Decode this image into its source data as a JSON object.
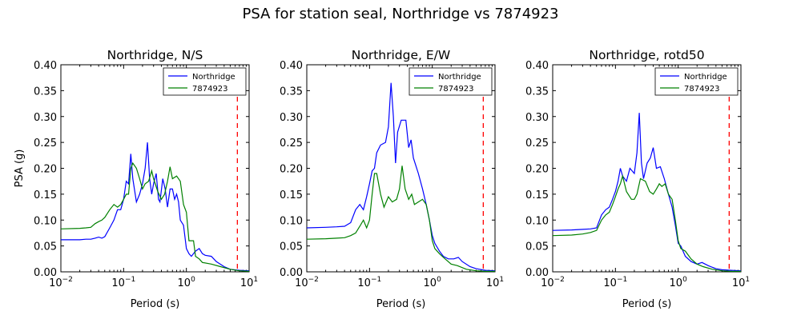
{
  "figure": {
    "suptitle": "PSA for station seal, Northridge vs 7874923"
  },
  "colors": {
    "series1": "#0000ff",
    "series2": "#008000",
    "cutoff": "#ff0000",
    "axis": "#000000",
    "background": "#ffffff"
  },
  "chart_data": [
    {
      "type": "line",
      "title": "Northridge, N/S",
      "xlabel": "Period (s)",
      "ylabel": "PSA (g)",
      "xscale": "log",
      "xlim": [
        0.01,
        10
      ],
      "ylim": [
        0,
        0.4
      ],
      "xticks": [
        0.01,
        0.1,
        1,
        10
      ],
      "yticks": [
        0,
        0.05,
        0.1,
        0.15,
        0.2,
        0.25,
        0.3,
        0.35,
        0.4
      ],
      "grid": false,
      "legend_position": "top-right",
      "cutoff_period": 6.5,
      "series": [
        {
          "name": "Northridge",
          "color": "blue",
          "points": [
            [
              0.01,
              0.062
            ],
            [
              0.02,
              0.062
            ],
            [
              0.025,
              0.063
            ],
            [
              0.03,
              0.063
            ],
            [
              0.035,
              0.065
            ],
            [
              0.04,
              0.067
            ],
            [
              0.045,
              0.065
            ],
            [
              0.05,
              0.068
            ],
            [
              0.06,
              0.085
            ],
            [
              0.07,
              0.1
            ],
            [
              0.08,
              0.12
            ],
            [
              0.09,
              0.12
            ],
            [
              0.1,
              0.14
            ],
            [
              0.11,
              0.175
            ],
            [
              0.12,
              0.17
            ],
            [
              0.13,
              0.228
            ],
            [
              0.14,
              0.18
            ],
            [
              0.16,
              0.135
            ],
            [
              0.18,
              0.15
            ],
            [
              0.2,
              0.17
            ],
            [
              0.22,
              0.2
            ],
            [
              0.24,
              0.25
            ],
            [
              0.26,
              0.18
            ],
            [
              0.28,
              0.15
            ],
            [
              0.3,
              0.17
            ],
            [
              0.33,
              0.19
            ],
            [
              0.36,
              0.14
            ],
            [
              0.38,
              0.135
            ],
            [
              0.42,
              0.18
            ],
            [
              0.46,
              0.16
            ],
            [
              0.5,
              0.125
            ],
            [
              0.55,
              0.16
            ],
            [
              0.6,
              0.16
            ],
            [
              0.65,
              0.14
            ],
            [
              0.7,
              0.15
            ],
            [
              0.75,
              0.135
            ],
            [
              0.8,
              0.1
            ],
            [
              0.9,
              0.09
            ],
            [
              1.0,
              0.045
            ],
            [
              1.1,
              0.035
            ],
            [
              1.2,
              0.03
            ],
            [
              1.4,
              0.04
            ],
            [
              1.6,
              0.045
            ],
            [
              1.8,
              0.035
            ],
            [
              2.0,
              0.032
            ],
            [
              2.5,
              0.03
            ],
            [
              3.0,
              0.02
            ],
            [
              4.0,
              0.01
            ],
            [
              5.0,
              0.005
            ],
            [
              7.0,
              0.003
            ],
            [
              10,
              0.002
            ]
          ]
        },
        {
          "name": "7874923",
          "color": "green",
          "points": [
            [
              0.01,
              0.083
            ],
            [
              0.02,
              0.084
            ],
            [
              0.025,
              0.085
            ],
            [
              0.03,
              0.086
            ],
            [
              0.035,
              0.093
            ],
            [
              0.04,
              0.097
            ],
            [
              0.045,
              0.1
            ],
            [
              0.05,
              0.105
            ],
            [
              0.06,
              0.12
            ],
            [
              0.07,
              0.13
            ],
            [
              0.08,
              0.125
            ],
            [
              0.09,
              0.13
            ],
            [
              0.1,
              0.14
            ],
            [
              0.11,
              0.15
            ],
            [
              0.12,
              0.15
            ],
            [
              0.13,
              0.2
            ],
            [
              0.14,
              0.21
            ],
            [
              0.16,
              0.2
            ],
            [
              0.18,
              0.18
            ],
            [
              0.2,
              0.16
            ],
            [
              0.22,
              0.17
            ],
            [
              0.25,
              0.175
            ],
            [
              0.28,
              0.195
            ],
            [
              0.3,
              0.18
            ],
            [
              0.35,
              0.155
            ],
            [
              0.4,
              0.14
            ],
            [
              0.45,
              0.15
            ],
            [
              0.5,
              0.175
            ],
            [
              0.55,
              0.203
            ],
            [
              0.6,
              0.18
            ],
            [
              0.7,
              0.185
            ],
            [
              0.8,
              0.175
            ],
            [
              0.9,
              0.13
            ],
            [
              1.0,
              0.115
            ],
            [
              1.1,
              0.06
            ],
            [
              1.3,
              0.06
            ],
            [
              1.4,
              0.03
            ],
            [
              1.6,
              0.025
            ],
            [
              1.8,
              0.018
            ],
            [
              2.5,
              0.015
            ],
            [
              3.5,
              0.01
            ],
            [
              5,
              0.005
            ],
            [
              7,
              0.002
            ],
            [
              10,
              0.001
            ]
          ]
        }
      ]
    },
    {
      "type": "line",
      "title": "Northridge, E/W",
      "xlabel": "Period (s)",
      "ylabel": "",
      "xscale": "log",
      "xlim": [
        0.01,
        10
      ],
      "ylim": [
        0,
        0.4
      ],
      "xticks": [
        0.01,
        0.1,
        1,
        10
      ],
      "yticks": [
        0,
        0.05,
        0.1,
        0.15,
        0.2,
        0.25,
        0.3,
        0.35,
        0.4
      ],
      "grid": false,
      "legend_position": "top-right",
      "cutoff_period": 6.5,
      "series": [
        {
          "name": "Northridge",
          "color": "blue",
          "points": [
            [
              0.01,
              0.085
            ],
            [
              0.02,
              0.086
            ],
            [
              0.03,
              0.087
            ],
            [
              0.04,
              0.088
            ],
            [
              0.05,
              0.095
            ],
            [
              0.06,
              0.12
            ],
            [
              0.07,
              0.13
            ],
            [
              0.08,
              0.12
            ],
            [
              0.09,
              0.145
            ],
            [
              0.1,
              0.17
            ],
            [
              0.11,
              0.195
            ],
            [
              0.12,
              0.2
            ],
            [
              0.13,
              0.23
            ],
            [
              0.15,
              0.245
            ],
            [
              0.18,
              0.25
            ],
            [
              0.2,
              0.28
            ],
            [
              0.22,
              0.365
            ],
            [
              0.24,
              0.3
            ],
            [
              0.26,
              0.21
            ],
            [
              0.28,
              0.27
            ],
            [
              0.32,
              0.293
            ],
            [
              0.38,
              0.293
            ],
            [
              0.42,
              0.24
            ],
            [
              0.46,
              0.255
            ],
            [
              0.5,
              0.22
            ],
            [
              0.6,
              0.19
            ],
            [
              0.7,
              0.16
            ],
            [
              0.8,
              0.13
            ],
            [
              0.9,
              0.1
            ],
            [
              1.0,
              0.07
            ],
            [
              1.1,
              0.055
            ],
            [
              1.3,
              0.04
            ],
            [
              1.5,
              0.03
            ],
            [
              1.8,
              0.025
            ],
            [
              2.2,
              0.025
            ],
            [
              2.6,
              0.028
            ],
            [
              3.0,
              0.02
            ],
            [
              4.0,
              0.01
            ],
            [
              5.0,
              0.006
            ],
            [
              7.0,
              0.003
            ],
            [
              10,
              0.002
            ]
          ]
        },
        {
          "name": "7874923",
          "color": "green",
          "points": [
            [
              0.01,
              0.063
            ],
            [
              0.02,
              0.064
            ],
            [
              0.03,
              0.065
            ],
            [
              0.04,
              0.066
            ],
            [
              0.05,
              0.07
            ],
            [
              0.06,
              0.075
            ],
            [
              0.07,
              0.088
            ],
            [
              0.08,
              0.1
            ],
            [
              0.09,
              0.085
            ],
            [
              0.1,
              0.1
            ],
            [
              0.11,
              0.15
            ],
            [
              0.12,
              0.19
            ],
            [
              0.13,
              0.19
            ],
            [
              0.15,
              0.15
            ],
            [
              0.17,
              0.125
            ],
            [
              0.2,
              0.145
            ],
            [
              0.23,
              0.135
            ],
            [
              0.27,
              0.14
            ],
            [
              0.3,
              0.16
            ],
            [
              0.33,
              0.205
            ],
            [
              0.37,
              0.16
            ],
            [
              0.42,
              0.14
            ],
            [
              0.47,
              0.15
            ],
            [
              0.52,
              0.13
            ],
            [
              0.6,
              0.135
            ],
            [
              0.7,
              0.14
            ],
            [
              0.8,
              0.13
            ],
            [
              0.9,
              0.1
            ],
            [
              1.0,
              0.06
            ],
            [
              1.1,
              0.045
            ],
            [
              1.3,
              0.035
            ],
            [
              1.6,
              0.025
            ],
            [
              2.0,
              0.015
            ],
            [
              2.5,
              0.012
            ],
            [
              3.5,
              0.005
            ],
            [
              5,
              0.002
            ],
            [
              7,
              0.001
            ],
            [
              10,
              0.001
            ]
          ]
        }
      ]
    },
    {
      "type": "line",
      "title": "Northridge, rotd50",
      "xlabel": "Period (s)",
      "ylabel": "",
      "xscale": "log",
      "xlim": [
        0.01,
        10
      ],
      "ylim": [
        0,
        0.4
      ],
      "xticks": [
        0.01,
        0.1,
        1,
        10
      ],
      "yticks": [
        0,
        0.05,
        0.1,
        0.15,
        0.2,
        0.25,
        0.3,
        0.35,
        0.4
      ],
      "grid": false,
      "legend_position": "top-right",
      "cutoff_period": 6.5,
      "series": [
        {
          "name": "Northridge",
          "color": "blue",
          "points": [
            [
              0.01,
              0.08
            ],
            [
              0.02,
              0.081
            ],
            [
              0.03,
              0.082
            ],
            [
              0.04,
              0.083
            ],
            [
              0.05,
              0.085
            ],
            [
              0.06,
              0.11
            ],
            [
              0.07,
              0.12
            ],
            [
              0.08,
              0.125
            ],
            [
              0.09,
              0.14
            ],
            [
              0.1,
              0.155
            ],
            [
              0.11,
              0.175
            ],
            [
              0.12,
              0.2
            ],
            [
              0.13,
              0.185
            ],
            [
              0.15,
              0.175
            ],
            [
              0.17,
              0.2
            ],
            [
              0.2,
              0.19
            ],
            [
              0.22,
              0.23
            ],
            [
              0.24,
              0.307
            ],
            [
              0.26,
              0.21
            ],
            [
              0.28,
              0.18
            ],
            [
              0.32,
              0.21
            ],
            [
              0.36,
              0.22
            ],
            [
              0.4,
              0.24
            ],
            [
              0.45,
              0.2
            ],
            [
              0.52,
              0.203
            ],
            [
              0.6,
              0.18
            ],
            [
              0.7,
              0.15
            ],
            [
              0.8,
              0.125
            ],
            [
              0.9,
              0.09
            ],
            [
              1.0,
              0.055
            ],
            [
              1.1,
              0.05
            ],
            [
              1.3,
              0.03
            ],
            [
              1.6,
              0.02
            ],
            [
              2.0,
              0.015
            ],
            [
              2.4,
              0.018
            ],
            [
              3.0,
              0.012
            ],
            [
              4.0,
              0.006
            ],
            [
              5.0,
              0.004
            ],
            [
              7.0,
              0.003
            ],
            [
              10,
              0.002
            ]
          ]
        },
        {
          "name": "7874923",
          "color": "green",
          "points": [
            [
              0.01,
              0.07
            ],
            [
              0.02,
              0.071
            ],
            [
              0.03,
              0.073
            ],
            [
              0.04,
              0.076
            ],
            [
              0.05,
              0.08
            ],
            [
              0.06,
              0.1
            ],
            [
              0.07,
              0.11
            ],
            [
              0.08,
              0.115
            ],
            [
              0.09,
              0.13
            ],
            [
              0.1,
              0.145
            ],
            [
              0.11,
              0.16
            ],
            [
              0.12,
              0.17
            ],
            [
              0.13,
              0.185
            ],
            [
              0.15,
              0.155
            ],
            [
              0.18,
              0.14
            ],
            [
              0.2,
              0.14
            ],
            [
              0.22,
              0.15
            ],
            [
              0.25,
              0.18
            ],
            [
              0.3,
              0.175
            ],
            [
              0.35,
              0.155
            ],
            [
              0.4,
              0.15
            ],
            [
              0.45,
              0.16
            ],
            [
              0.5,
              0.17
            ],
            [
              0.55,
              0.165
            ],
            [
              0.62,
              0.17
            ],
            [
              0.7,
              0.15
            ],
            [
              0.8,
              0.14
            ],
            [
              0.9,
              0.1
            ],
            [
              1.0,
              0.06
            ],
            [
              1.1,
              0.045
            ],
            [
              1.3,
              0.04
            ],
            [
              1.6,
              0.025
            ],
            [
              2.0,
              0.015
            ],
            [
              2.5,
              0.01
            ],
            [
              3.5,
              0.005
            ],
            [
              5,
              0.002
            ],
            [
              7,
              0.001
            ],
            [
              10,
              0.001
            ]
          ]
        }
      ]
    }
  ]
}
